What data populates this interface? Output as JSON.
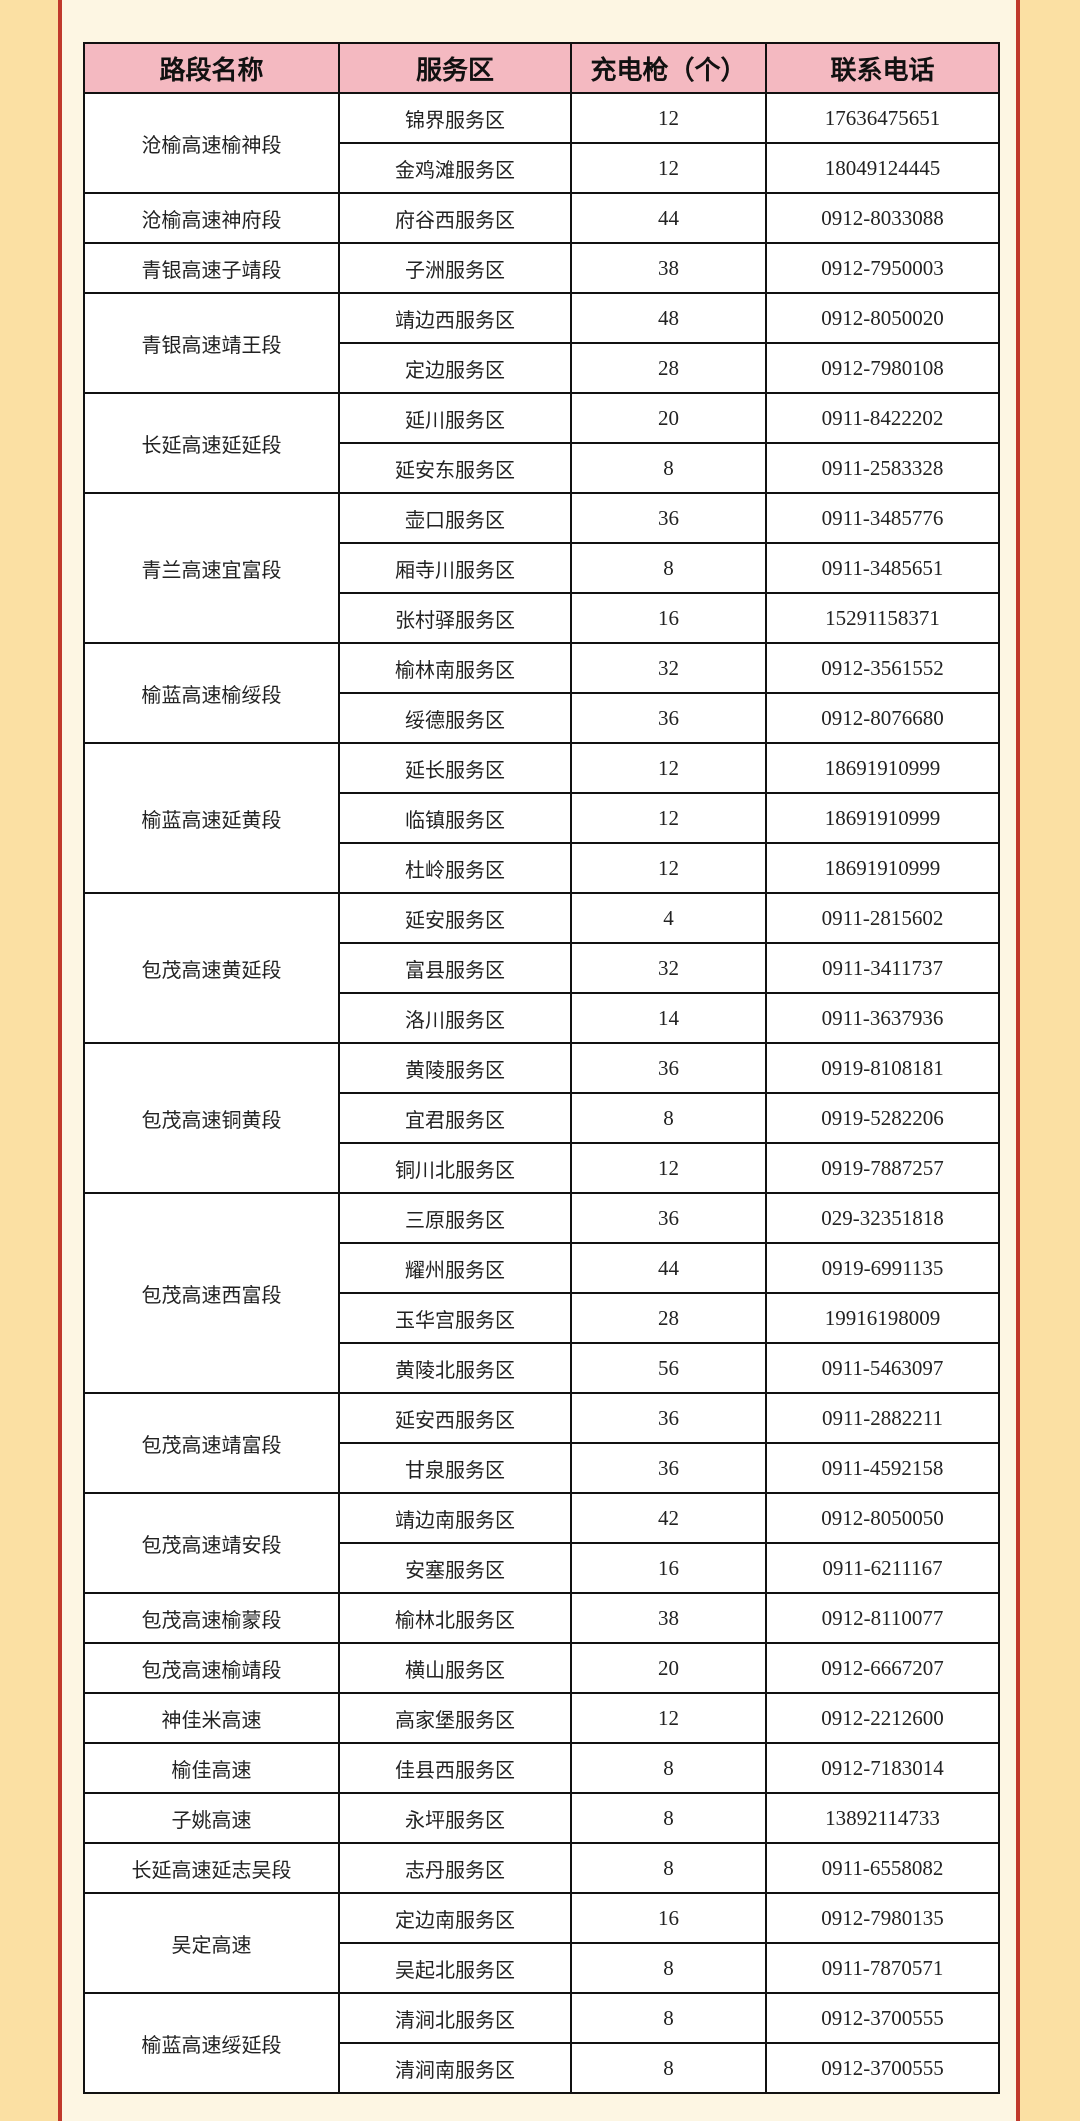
{
  "colors": {
    "header_bg": "#f4b9c1",
    "page_bg": "#fbe0a3",
    "panel_bg": "#fdf6e3",
    "frame": "#c0392b"
  },
  "table": {
    "headers": [
      "路段名称",
      "服务区",
      "充电枪（个）",
      "联系电话"
    ],
    "groups": [
      {
        "road": "沧榆高速榆神段",
        "rows": [
          [
            "锦界服务区",
            "12",
            "17636475651"
          ],
          [
            "金鸡滩服务区",
            "12",
            "18049124445"
          ]
        ]
      },
      {
        "road": "沧榆高速神府段",
        "rows": [
          [
            "府谷西服务区",
            "44",
            "0912-8033088"
          ]
        ]
      },
      {
        "road": "青银高速子靖段",
        "rows": [
          [
            "子洲服务区",
            "38",
            "0912-7950003"
          ]
        ]
      },
      {
        "road": "青银高速靖王段",
        "rows": [
          [
            "靖边西服务区",
            "48",
            "0912-8050020"
          ],
          [
            "定边服务区",
            "28",
            "0912-7980108"
          ]
        ]
      },
      {
        "road": "长延高速延延段",
        "rows": [
          [
            "延川服务区",
            "20",
            "0911-8422202"
          ],
          [
            "延安东服务区",
            "8",
            "0911-2583328"
          ]
        ]
      },
      {
        "road": "青兰高速宜富段",
        "rows": [
          [
            "壶口服务区",
            "36",
            "0911-3485776"
          ],
          [
            "厢寺川服务区",
            "8",
            "0911-3485651"
          ],
          [
            "张村驿服务区",
            "16",
            "15291158371"
          ]
        ]
      },
      {
        "road": "榆蓝高速榆绥段",
        "rows": [
          [
            "榆林南服务区",
            "32",
            "0912-3561552"
          ],
          [
            "绥德服务区",
            "36",
            "0912-8076680"
          ]
        ]
      },
      {
        "road": "榆蓝高速延黄段",
        "rows": [
          [
            "延长服务区",
            "12",
            "18691910999"
          ],
          [
            "临镇服务区",
            "12",
            "18691910999"
          ],
          [
            "杜岭服务区",
            "12",
            "18691910999"
          ]
        ]
      },
      {
        "road": "包茂高速黄延段",
        "rows": [
          [
            "延安服务区",
            "4",
            "0911-2815602"
          ],
          [
            "富县服务区",
            "32",
            "0911-3411737"
          ],
          [
            "洛川服务区",
            "14",
            "0911-3637936"
          ]
        ]
      },
      {
        "road": "包茂高速铜黄段",
        "rows": [
          [
            "黄陵服务区",
            "36",
            "0919-8108181"
          ],
          [
            "宜君服务区",
            "8",
            "0919-5282206"
          ],
          [
            "铜川北服务区",
            "12",
            "0919-7887257"
          ]
        ]
      },
      {
        "road": "包茂高速西富段",
        "rows": [
          [
            "三原服务区",
            "36",
            "029-32351818"
          ],
          [
            "耀州服务区",
            "44",
            "0919-6991135"
          ],
          [
            "玉华宫服务区",
            "28",
            "19916198009"
          ],
          [
            "黄陵北服务区",
            "56",
            "0911-5463097"
          ]
        ]
      },
      {
        "road": "包茂高速靖富段",
        "rows": [
          [
            "延安西服务区",
            "36",
            "0911-2882211"
          ],
          [
            "甘泉服务区",
            "36",
            "0911-4592158"
          ]
        ]
      },
      {
        "road": "包茂高速靖安段",
        "rows": [
          [
            "靖边南服务区",
            "42",
            "0912-8050050"
          ],
          [
            "安塞服务区",
            "16",
            "0911-6211167"
          ]
        ]
      },
      {
        "road": "包茂高速榆蒙段",
        "rows": [
          [
            "榆林北服务区",
            "38",
            "0912-8110077"
          ]
        ]
      },
      {
        "road": "包茂高速榆靖段",
        "rows": [
          [
            "横山服务区",
            "20",
            "0912-6667207"
          ]
        ]
      },
      {
        "road": "神佳米高速",
        "rows": [
          [
            "高家堡服务区",
            "12",
            "0912-2212600"
          ]
        ]
      },
      {
        "road": "榆佳高速",
        "rows": [
          [
            "佳县西服务区",
            "8",
            "0912-7183014"
          ]
        ]
      },
      {
        "road": "子姚高速",
        "rows": [
          [
            "永坪服务区",
            "8",
            "13892114733"
          ]
        ]
      },
      {
        "road": "长延高速延志吴段",
        "rows": [
          [
            "志丹服务区",
            "8",
            "0911-6558082"
          ]
        ]
      },
      {
        "road": "吴定高速",
        "rows": [
          [
            "定边南服务区",
            "16",
            "0912-7980135"
          ],
          [
            "吴起北服务区",
            "8",
            "0911-7870571"
          ]
        ]
      },
      {
        "road": "榆蓝高速绥延段",
        "rows": [
          [
            "清涧北服务区",
            "8",
            "0912-3700555"
          ],
          [
            "清涧南服务区",
            "8",
            "0912-3700555"
          ]
        ]
      }
    ]
  }
}
